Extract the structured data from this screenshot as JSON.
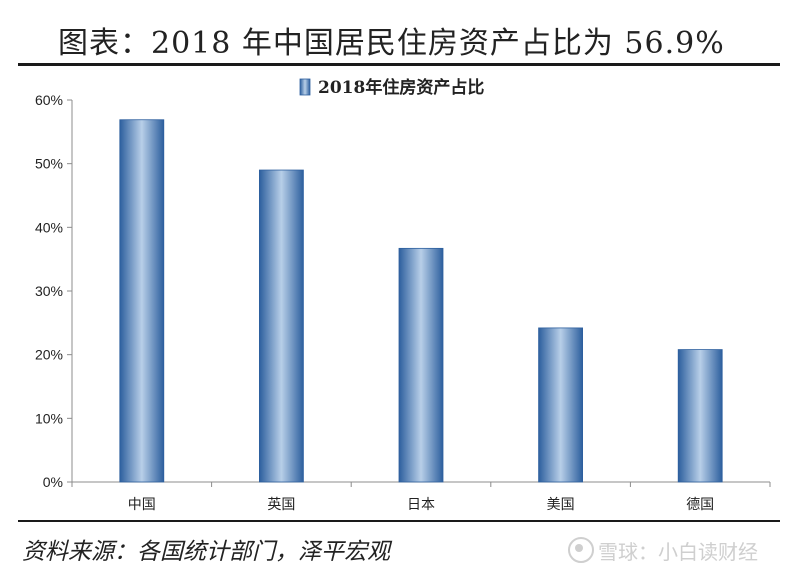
{
  "header": {
    "title": "图表：2018 年中国居民住房资产占比为 56.9%"
  },
  "footer": {
    "source": "资料来源：各国统计部门，泽平宏观",
    "watermark": "雪球：小白读财经"
  },
  "colors": {
    "bar_dark": "#2d5f9e",
    "bar_light": "#b8cfe8",
    "axis": "#8c8c8c",
    "text": "#222222"
  },
  "chart_data": {
    "type": "bar",
    "categories": [
      "中国",
      "英国",
      "日本",
      "美国",
      "德国"
    ],
    "series": [
      {
        "name": "2018年住房资产占比",
        "values": [
          56.9,
          49.0,
          36.7,
          24.2,
          20.8
        ]
      }
    ],
    "ylim": [
      0,
      60
    ],
    "yticks": [
      0,
      10,
      20,
      30,
      40,
      50,
      60
    ],
    "ytick_labels": [
      "0%",
      "10%",
      "20%",
      "30%",
      "40%",
      "50%",
      "60%"
    ],
    "grid": false,
    "legend": "top-left"
  }
}
